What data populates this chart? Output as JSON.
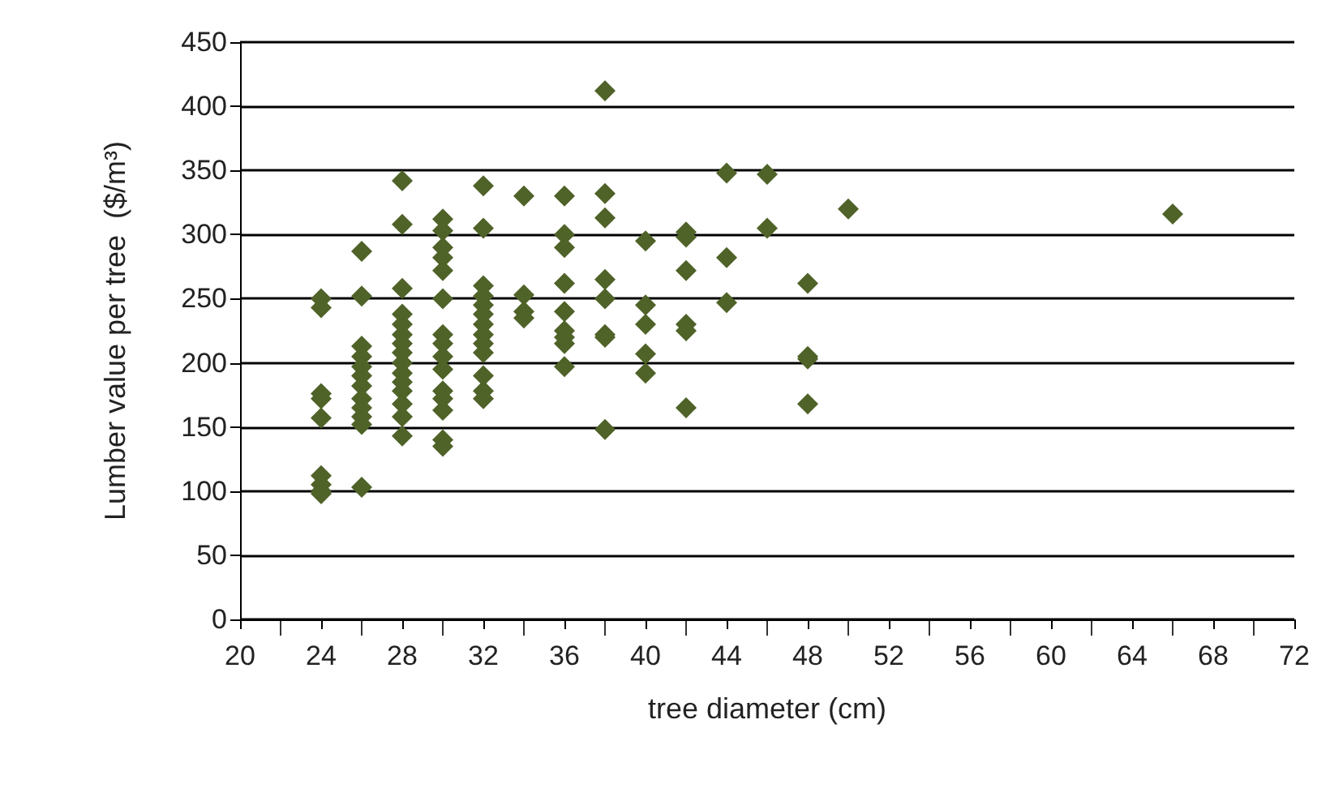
{
  "chart_data": {
    "type": "scatter",
    "xlabel": "tree diameter (cm)",
    "ylabel": "Lumber value per tree  ($/m³)",
    "x": [
      24,
      24,
      24,
      24,
      24,
      24,
      24,
      24,
      24,
      26,
      26,
      26,
      26,
      26,
      26,
      26,
      26,
      26,
      26,
      26,
      26,
      28,
      28,
      28,
      28,
      28,
      28,
      28,
      28,
      28,
      28,
      28,
      28,
      28,
      28,
      28,
      30,
      30,
      30,
      30,
      30,
      30,
      30,
      30,
      30,
      30,
      30,
      30,
      30,
      30,
      30,
      32,
      32,
      32,
      32,
      32,
      32,
      32,
      32,
      32,
      32,
      32,
      32,
      32,
      34,
      34,
      34,
      34,
      36,
      36,
      36,
      36,
      36,
      36,
      36,
      36,
      36,
      38,
      38,
      38,
      38,
      38,
      38,
      38,
      38,
      40,
      40,
      40,
      40,
      40,
      42,
      42,
      42,
      42,
      42,
      42,
      44,
      44,
      44,
      46,
      46,
      48,
      48,
      48,
      48,
      50,
      66
    ],
    "values": [
      250,
      243,
      176,
      172,
      157,
      112,
      105,
      100,
      98,
      287,
      252,
      213,
      205,
      197,
      190,
      182,
      172,
      165,
      158,
      152,
      103,
      342,
      308,
      258,
      238,
      230,
      222,
      215,
      208,
      200,
      192,
      185,
      178,
      168,
      158,
      143,
      312,
      303,
      290,
      282,
      272,
      250,
      222,
      215,
      205,
      195,
      178,
      172,
      163,
      140,
      135,
      338,
      305,
      260,
      252,
      245,
      238,
      230,
      222,
      215,
      208,
      190,
      178,
      172,
      330,
      253,
      240,
      235,
      330,
      300,
      290,
      262,
      240,
      225,
      220,
      215,
      197,
      412,
      332,
      313,
      265,
      250,
      222,
      220,
      148,
      295,
      245,
      230,
      207,
      192,
      302,
      298,
      272,
      230,
      225,
      165,
      348,
      282,
      247,
      347,
      305,
      262,
      205,
      203,
      168,
      320,
      316
    ],
    "color": "#4f6228",
    "marker": "diamond",
    "grid": "y",
    "xlim": [
      20,
      72
    ],
    "xticks": [
      20,
      24,
      28,
      32,
      36,
      40,
      44,
      48,
      52,
      56,
      60,
      64,
      68,
      72
    ],
    "ylim": [
      0,
      450
    ],
    "yticks": [
      0,
      50,
      100,
      150,
      200,
      250,
      300,
      350,
      400,
      450
    ]
  }
}
